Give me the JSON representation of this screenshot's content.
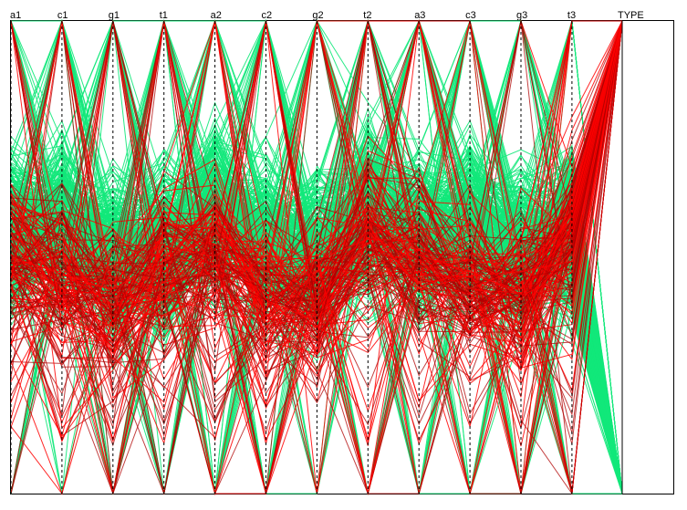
{
  "chart_data": {
    "type": "parallel_coordinates",
    "axes": [
      "a1",
      "c1",
      "g1",
      "t1",
      "a2",
      "c2",
      "g2",
      "t2",
      "a3",
      "c3",
      "g3",
      "t3",
      "TYPE"
    ],
    "class_axis": "TYPE",
    "classes": [
      {
        "value": "top",
        "color": "#ff0000"
      },
      {
        "value": "bottom",
        "color": "#12e87a"
      }
    ],
    "grid": false,
    "legend": "none"
  },
  "colors": {
    "background": "#ffffff",
    "frame": "#000000",
    "axis_line": "#000000",
    "class_red": "#ff0000",
    "class_green": "#12e87a",
    "dark_red": "#b00000"
  }
}
